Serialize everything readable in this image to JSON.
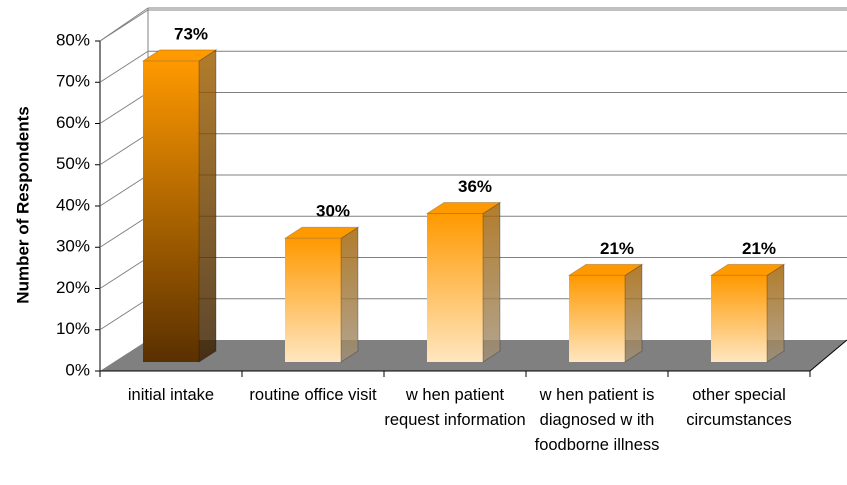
{
  "chart_data": {
    "type": "bar3d",
    "y_axis_label": "Number of Respondents",
    "categories": [
      "initial intake",
      "routine office visit",
      "w hen patient request information",
      "w hen patient is diagnosed w ith foodborne illness",
      "other special circumstances"
    ],
    "values": [
      73,
      30,
      36,
      21,
      21
    ],
    "value_labels": [
      "73%",
      "30%",
      "36%",
      "21%",
      "21%"
    ],
    "gradients": [
      [
        "#ff9900",
        "#5a3000"
      ],
      [
        "#ff9900",
        "#ffe6c0"
      ],
      [
        "#ff9900",
        "#ffe6c0"
      ],
      [
        "#ff9900",
        "#ffe6c0"
      ],
      [
        "#ff9900",
        "#ffe6c0"
      ]
    ],
    "ylim": [
      0,
      80
    ],
    "yticks": [
      {
        "value": 0,
        "label": "0%"
      },
      {
        "value": 10,
        "label": "10%"
      },
      {
        "value": 20,
        "label": "20%"
      },
      {
        "value": 30,
        "label": "30%"
      },
      {
        "value": 40,
        "label": "40%"
      },
      {
        "value": 50,
        "label": "50%"
      },
      {
        "value": 60,
        "label": "60%"
      },
      {
        "value": 70,
        "label": "70%"
      },
      {
        "value": 80,
        "label": "80%"
      }
    ],
    "grid": true
  }
}
